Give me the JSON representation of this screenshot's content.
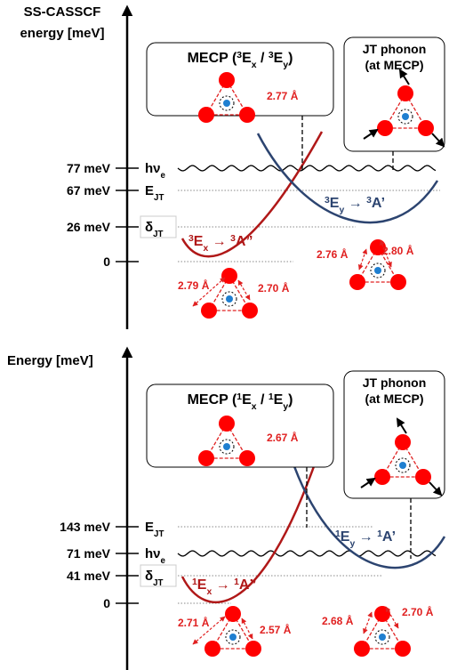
{
  "panels": [
    {
      "axis_title": [
        "SS-CASSCF",
        "energy [meV]"
      ],
      "energy_labels": [
        "77 meV",
        "67 meV",
        "26 meV",
        "0"
      ],
      "level_names": [
        [
          {
            "text": "hν"
          },
          {
            "sub": "e"
          }
        ],
        [
          {
            "text": "E"
          },
          {
            "sub": "JT"
          }
        ],
        [
          {
            "text": "δ"
          },
          {
            "sub": "JT"
          }
        ]
      ],
      "mecp": {
        "title": [
          {
            "text": "MECP ("
          },
          {
            "sup": "3"
          },
          {
            "text": "E"
          },
          {
            "sub": "x"
          },
          {
            "text": " / "
          },
          {
            "sup": "3"
          },
          {
            "text": "E"
          },
          {
            "sub": "y"
          },
          {
            "text": ")"
          }
        ],
        "distance": "2.77 Å"
      },
      "phonon": [
        "JT phonon",
        "(at MECP)"
      ],
      "curves": [
        [
          {
            "sup": "3"
          },
          {
            "text": "E"
          },
          {
            "sub": "x"
          },
          {
            "text": " → "
          },
          {
            "sup": "3"
          },
          {
            "text": "A”"
          }
        ],
        [
          {
            "sup": "3"
          },
          {
            "text": "E"
          },
          {
            "sub": "y"
          },
          {
            "text": " → "
          },
          {
            "sup": "3"
          },
          {
            "text": "A’"
          }
        ]
      ],
      "distances": [
        "2.79 Å",
        "2.70 Å",
        "2.76 Å",
        "2.80 Å"
      ]
    },
    {
      "axis_title": [
        "Energy [meV]"
      ],
      "energy_labels": [
        "143 meV",
        "71 meV",
        "41 meV",
        "0"
      ],
      "level_names": [
        [
          {
            "text": "E"
          },
          {
            "sub": "JT"
          }
        ],
        [
          {
            "text": "hν"
          },
          {
            "sub": "e"
          }
        ],
        [
          {
            "text": "δ"
          },
          {
            "sub": "JT"
          }
        ]
      ],
      "mecp": {
        "title": [
          {
            "text": "MECP ("
          },
          {
            "sup": "1"
          },
          {
            "text": "E"
          },
          {
            "sub": "x"
          },
          {
            "text": " / "
          },
          {
            "sup": "1"
          },
          {
            "text": "E"
          },
          {
            "sub": "y"
          },
          {
            "text": ")"
          }
        ],
        "distance": "2.67 Å"
      },
      "phonon": [
        "JT phonon",
        "(at MECP)"
      ],
      "curves": [
        [
          {
            "sup": "1"
          },
          {
            "text": "E"
          },
          {
            "sub": "x"
          },
          {
            "text": " → "
          },
          {
            "sup": "1"
          },
          {
            "text": "A”"
          }
        ],
        [
          {
            "sup": "1"
          },
          {
            "text": "E"
          },
          {
            "sub": "y"
          },
          {
            "text": " → "
          },
          {
            "sup": "1"
          },
          {
            "text": "A’"
          }
        ]
      ],
      "distances": [
        "2.71 Å",
        "2.57 Å",
        "2.68 Å",
        "2.70 Å"
      ]
    }
  ]
}
